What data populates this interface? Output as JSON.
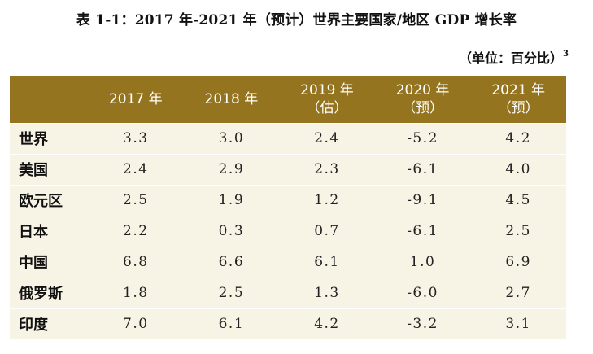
{
  "title": "表 1-1：2017 年-2021 年（预计）世界主要国家/地区 GDP 增长率",
  "unit": {
    "text": "（单位：百分比）",
    "footnote": "3"
  },
  "table": {
    "headers": [
      {
        "line1": "",
        "line2": ""
      },
      {
        "line1": "2017 年",
        "line2": ""
      },
      {
        "line1": "2018 年",
        "line2": ""
      },
      {
        "line1": "2019 年",
        "line2": "（估）"
      },
      {
        "line1": "2020 年",
        "line2": "（预）"
      },
      {
        "line1": "2021 年",
        "line2": "（预）"
      }
    ],
    "rows": [
      {
        "label": "世界",
        "values": [
          "3.3",
          "3.0",
          "2.4",
          "-5.2",
          "4.2"
        ]
      },
      {
        "label": "美国",
        "values": [
          "2.4",
          "2.9",
          "2.3",
          "-6.1",
          "4.0"
        ]
      },
      {
        "label": "欧元区",
        "values": [
          "2.5",
          "1.9",
          "1.2",
          "-9.1",
          "4.5"
        ]
      },
      {
        "label": "日本",
        "values": [
          "2.2",
          "0.3",
          "0.7",
          "-6.1",
          "2.5"
        ]
      },
      {
        "label": "中国",
        "values": [
          "6.8",
          "6.6",
          "6.1",
          "1.0",
          "6.9"
        ]
      },
      {
        "label": "俄罗斯",
        "values": [
          "1.8",
          "2.5",
          "1.3",
          "-6.0",
          "2.7"
        ]
      },
      {
        "label": "印度",
        "values": [
          "7.0",
          "6.1",
          "4.2",
          "-3.2",
          "3.1"
        ]
      }
    ]
  },
  "colors": {
    "header_bg": "#94741e",
    "row_bg": "#f7f4e5",
    "header_text": "#ffffff"
  }
}
